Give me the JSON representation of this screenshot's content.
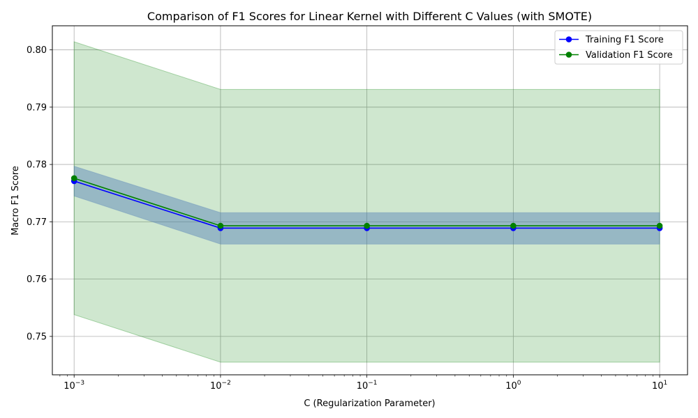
{
  "chart_data": {
    "type": "line",
    "title": "Comparison of F1 Scores for Linear Kernel with Different C Values (with SMOTE)",
    "xlabel": "C (Regularization Parameter)",
    "ylabel": "Macro F1 Score",
    "xscale": "log",
    "x": [
      0.001,
      0.01,
      0.1,
      1,
      10
    ],
    "xlim": [
      0.00071,
      15.5
    ],
    "ylim": [
      0.7433,
      0.8042
    ],
    "x_ticks": [
      {
        "value": 0.001,
        "base": "10",
        "exp": "−3"
      },
      {
        "value": 0.01,
        "base": "10",
        "exp": "−2"
      },
      {
        "value": 0.1,
        "base": "10",
        "exp": "−1"
      },
      {
        "value": 1,
        "base": "10",
        "exp": "0"
      },
      {
        "value": 10,
        "base": "10",
        "exp": "1"
      }
    ],
    "y_ticks": [
      {
        "value": 0.75,
        "label": "0.75"
      },
      {
        "value": 0.76,
        "label": "0.76"
      },
      {
        "value": 0.77,
        "label": "0.77"
      },
      {
        "value": 0.78,
        "label": "0.78"
      },
      {
        "value": 0.79,
        "label": "0.79"
      },
      {
        "value": 0.8,
        "label": "0.80"
      }
    ],
    "grid": true,
    "legend_position": "top-right",
    "series": [
      {
        "name": "Training F1 Score",
        "color": "#0000ff",
        "band_color": "#4a78b5",
        "values": [
          0.7771,
          0.7689,
          0.7689,
          0.7689,
          0.7689
        ],
        "lower": [
          0.7745,
          0.7661,
          0.7661,
          0.7661,
          0.7661
        ],
        "upper": [
          0.7797,
          0.7716,
          0.7716,
          0.7716,
          0.7716
        ]
      },
      {
        "name": "Validation F1 Score",
        "color": "#008000",
        "band_color": "#008000",
        "values": [
          0.7776,
          0.7693,
          0.7693,
          0.7693,
          0.7693
        ],
        "lower": [
          0.7538,
          0.7455,
          0.7455,
          0.7455,
          0.7455
        ],
        "upper": [
          0.8014,
          0.7931,
          0.7931,
          0.7931,
          0.7931
        ]
      }
    ]
  }
}
